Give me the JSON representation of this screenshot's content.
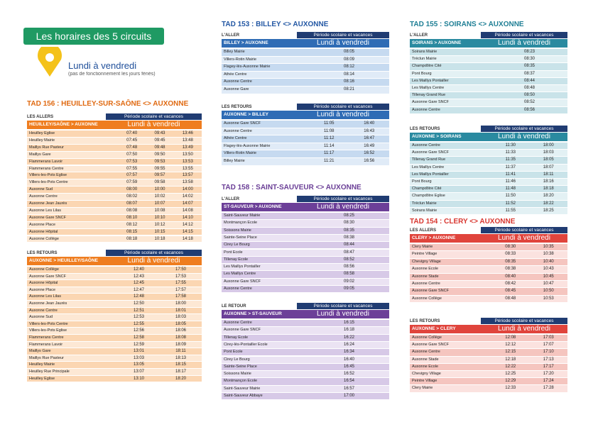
{
  "header": {
    "title": "Les horaires des 5 circuits",
    "subtitle": "Lundi à vendredi",
    "note": "(pas de fonctionnement les jours fériés)"
  },
  "circuits": [
    {
      "title": "TAD 156 : HEUILLEY-SUR-SAÔNE <> AUXONNE",
      "sections": [
        {
          "label": "LES ALLERS",
          "period": "Période scolaire et vacances",
          "direction": "HEUILLEY/SAÔNE > AUXONNE",
          "days": "Lundi à vendredi",
          "rows": [
            [
              "Heuilley Eglise",
              "07:40",
              "09:43",
              "13:46"
            ],
            [
              "Heuilley Mairie",
              "07:45",
              "09:45",
              "13:48"
            ],
            [
              "Maillys Rue Pasteur",
              "07:48",
              "09:48",
              "13:49"
            ],
            [
              "Maillys Gare",
              "07:50",
              "09:50",
              "13:50"
            ],
            [
              "Flammerans Lavoir",
              "07:53",
              "09:53",
              "13:53"
            ],
            [
              "Flammerans Centre",
              "07:55",
              "09:55",
              "13:55"
            ],
            [
              "Villers-les-Pots Eglise",
              "07:57",
              "09:57",
              "13:57"
            ],
            [
              "Villers-les-Pots Centre",
              "07:59",
              "09:58",
              "13:58"
            ],
            [
              "Auxonne Sud",
              "08:00",
              "10:00",
              "14:00"
            ],
            [
              "Auxonne Centre",
              "08:02",
              "10:02",
              "14:02"
            ],
            [
              "Auxonne Jean Jaurès",
              "08:07",
              "10:07",
              "14:07"
            ],
            [
              "Auxonne Les Lilas",
              "08:08",
              "10:08",
              "14:08"
            ],
            [
              "Auxonne Gare SNCF",
              "08:10",
              "10:10",
              "14:10"
            ],
            [
              "Auxonne Place",
              "08:12",
              "10:12",
              "14:12"
            ],
            [
              "Auxonne Hôpital",
              "08:15",
              "10:15",
              "14:15"
            ],
            [
              "Auxonne Collège",
              "08:18",
              "10:18",
              "14:18"
            ]
          ]
        },
        {
          "label": "LES RETOURS",
          "period": "Période scolaire et vacances",
          "direction": "AUXONNE > HEUILLEY/SAÔNE",
          "days": "Lundi à vendredi",
          "rows": [
            [
              "Auxonne Collège",
              "12:40",
              "17:50"
            ],
            [
              "Auxonne Gare SNCF",
              "12:43",
              "17:53"
            ],
            [
              "Auxonne Hôpital",
              "12:45",
              "17:55"
            ],
            [
              "Auxonne Place",
              "12:47",
              "17:57"
            ],
            [
              "Auxonne Les Lilas",
              "12:48",
              "17:58"
            ],
            [
              "Auxonne Jean Jaurès",
              "12:50",
              "18:00"
            ],
            [
              "Auxonne Centre",
              "12:51",
              "18:01"
            ],
            [
              "Auxonne Sud",
              "12:53",
              "18:03"
            ],
            [
              "Villers-les-Pots Centre",
              "12:55",
              "18:05"
            ],
            [
              "Villers-les-Pots Eglise",
              "12:56",
              "18:06"
            ],
            [
              "Flammerans Centre",
              "12:58",
              "18:08"
            ],
            [
              "Flammerans Lavoir",
              "12:59",
              "18:09"
            ],
            [
              "Maillys Gare",
              "13:01",
              "18:11"
            ],
            [
              "Maillys Rue Pasteur",
              "13:03",
              "18:13"
            ],
            [
              "Heuilley Mairie",
              "13:05",
              "18:15"
            ],
            [
              "Heuilley Rue Principale",
              "13:07",
              "18:17"
            ],
            [
              "Heuilley Eglise",
              "13:10",
              "18:20"
            ]
          ]
        }
      ]
    },
    {
      "title": "TAD 153 : BILLEY <> AUXONNE",
      "sections": [
        {
          "label": "L'ALLER",
          "period": "Période scolaire et vacances",
          "direction": "BILLEY > AUXONNE",
          "days": "Lundi à vendredi",
          "rows": [
            [
              "Billey Mairie",
              "08:05"
            ],
            [
              "Villers-Rotin Mairie",
              "08:09"
            ],
            [
              "Flagey-lès-Auxonne Mairie",
              "08:12"
            ],
            [
              "Athée Centre",
              "08:14"
            ],
            [
              "Auxonne Centre",
              "08:16"
            ],
            [
              "Auxonne Gare",
              "08:21"
            ]
          ]
        },
        {
          "label": "LES RETOURS",
          "period": "Période scolaire et vacances",
          "direction": "AUXONNE > BILLEY",
          "days": "Lundi à vendredi",
          "rows": [
            [
              "Auxonne Gare SNCF",
              "11:05",
              "16:40"
            ],
            [
              "Auxonne Centre",
              "11:08",
              "16:43"
            ],
            [
              "Athée Centre",
              "11:12",
              "16:47"
            ],
            [
              "Flagey-lès-Auxonne Mairie",
              "11:14",
              "16:49"
            ],
            [
              "Villers-Rotin Mairie",
              "11:17",
              "16:52"
            ],
            [
              "Billey Mairie",
              "11:21",
              "16:56"
            ]
          ]
        }
      ]
    },
    {
      "title": "TAD 158 : SAINT-SAUVEUR <> AUXONNE",
      "sections": [
        {
          "label": "L'ALLER",
          "period": "Période scolaire et vacances",
          "direction": "ST-SAUVEUR > AUXONNE",
          "days": "Lundi à vendredi",
          "rows": [
            [
              "Saint-Sauveur Mairie",
              "08:25"
            ],
            [
              "Montmançon Ecole",
              "08:30"
            ],
            [
              "Soissons Mairie",
              "08:35"
            ],
            [
              "Sainte-Seine Place",
              "08:38"
            ],
            [
              "Cirey Le Bourg",
              "08:44"
            ],
            [
              "Pont Ecole",
              "08:47"
            ],
            [
              "Tillenay Ecole",
              "08:52"
            ],
            [
              "Les Maillys Pontailler",
              "08:56"
            ],
            [
              "Les Maillys Centre",
              "08:58"
            ],
            [
              "Auxonne Gare SNCF",
              "09:02"
            ],
            [
              "Auxonne Centre",
              "09:05"
            ]
          ]
        },
        {
          "label": "LE RETOUR",
          "period": "Période scolaire et vacances",
          "direction": "AUXONNE > ST-SAUVEUR",
          "days": "Lundi à vendredi",
          "rows": [
            [
              "Auxonne Centre",
              "16:15"
            ],
            [
              "Auxonne Gare SNCF",
              "16:18"
            ],
            [
              "Tillenay Ecole",
              "16:22"
            ],
            [
              "Cirey-lès-Pontailler Ecole",
              "16:24"
            ],
            [
              "Pont Ecole",
              "16:34"
            ],
            [
              "Cirey Le Bourg",
              "16:40"
            ],
            [
              "Sainte-Seine Place",
              "16:45"
            ],
            [
              "Soissons Mairie",
              "16:52"
            ],
            [
              "Montmançon Ecole",
              "16:54"
            ],
            [
              "Saint-Sauveur Mairie",
              "16:57"
            ],
            [
              "Saint-Sauveur Abbaye",
              "17:00"
            ]
          ]
        }
      ]
    },
    {
      "title": "TAD 155 : SOIRANS <> AUXONNE",
      "sections": [
        {
          "label": "L'ALLER",
          "period": "Période scolaire et vacances",
          "direction": "SOIRANS > AUXONNE",
          "days": "Lundi à vendredi",
          "rows": [
            [
              "Soirans Mairie",
              "08:23"
            ],
            [
              "Tréclun Mairie",
              "08:30"
            ],
            [
              "Champdôtre Cité",
              "08:35"
            ],
            [
              "Pont Bourg",
              "08:37"
            ],
            [
              "Les Maillys Pontailler",
              "08:44"
            ],
            [
              "Les Maillys Centre",
              "08:48"
            ],
            [
              "Tillenay Grand Rue",
              "08:50"
            ],
            [
              "Auxonne Gare SNCF",
              "08:52"
            ],
            [
              "Auxonne Centre",
              "08:56"
            ]
          ]
        },
        {
          "label": "LES RETOURS",
          "period": "Période scolaire et vacances",
          "direction": "AUXONNE > SOIRANS",
          "days": "Lundi à vendredi",
          "rows": [
            [
              "Auxonne Centre",
              "11:30",
              "18:00"
            ],
            [
              "Auxonne Gare SNCF",
              "11:33",
              "18:03"
            ],
            [
              "Tillenay Grand Rue",
              "11:35",
              "18:05"
            ],
            [
              "Les Maillys Centre",
              "11:37",
              "18:07"
            ],
            [
              "Les Maillys Pontailler",
              "11:41",
              "18:11"
            ],
            [
              "Pont Bourg",
              "11:46",
              "18:16"
            ],
            [
              "Champdôtre Cité",
              "11:48",
              "18:18"
            ],
            [
              "Champdôtre Eglise",
              "11:50",
              "18:20"
            ],
            [
              "Tréclun Mairie",
              "11:52",
              "18:22"
            ],
            [
              "Soirans Mairie",
              "11:55",
              "18:25"
            ]
          ]
        }
      ]
    },
    {
      "title": "TAD 154 : CLERY <> AUXONNE",
      "sections": [
        {
          "label": "LES ALLERS",
          "period": "Période scolaire et vacances",
          "direction": "CLERY > AUXONNE",
          "days": "Lundi à vendredi",
          "rows": [
            [
              "Clery Mairie",
              "08:30",
              "10:35"
            ],
            [
              "Peintre Village",
              "08:33",
              "10:38"
            ],
            [
              "Chevigny Village",
              "08:35",
              "10:40"
            ],
            [
              "Auxonne Ecole",
              "08:38",
              "10:43"
            ],
            [
              "Auxonne Stade",
              "08:40",
              "10:45"
            ],
            [
              "Auxonne Centre",
              "08:42",
              "10:47"
            ],
            [
              "Auxonne Gare SNCF",
              "08:45",
              "10:50"
            ],
            [
              "Auxonne Collège",
              "08:48",
              "10:53"
            ]
          ]
        },
        {
          "label": "LES RETOURS",
          "period": "Période scolaire et vacances",
          "direction": "AUXONNE > CLERY",
          "days": "Lundi à vendredi",
          "rows": [
            [
              "Auxonne Collège",
              "12:08",
              "17:03"
            ],
            [
              "Auxonne Gare SNCF",
              "12:12",
              "17:07"
            ],
            [
              "Auxonne Centre",
              "12:15",
              "17:10"
            ],
            [
              "Auxonne Stade",
              "12:18",
              "17:13"
            ],
            [
              "Auxonne Ecole",
              "12:22",
              "17:17"
            ],
            [
              "Chevigny Village",
              "12:25",
              "17:20"
            ],
            [
              "Peintre Village",
              "12:29",
              "17:24"
            ],
            [
              "Clery Mairie",
              "12:33",
              "17:28"
            ]
          ]
        }
      ]
    }
  ]
}
